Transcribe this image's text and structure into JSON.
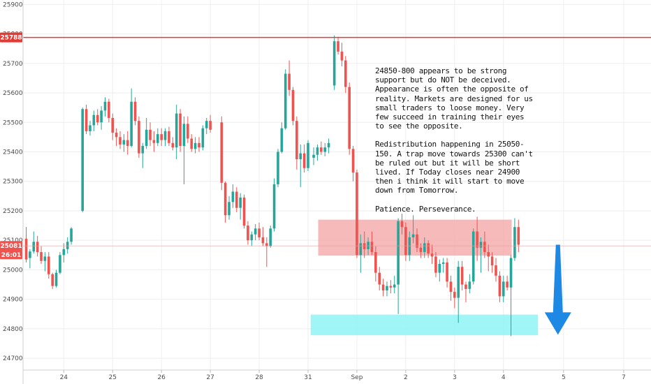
{
  "chart_data": {
    "type": "candlestick",
    "colors": {
      "up": "#26a69a",
      "down": "#ef5350",
      "resistance_line": "#e53935",
      "price_tag": "#e53935",
      "current_tag": "#ef5350",
      "zone_red": "#f4a3a3",
      "zone_cyan": "#8ff3f5",
      "arrow": "#1e88e5",
      "grid": "#eeeeee"
    },
    "y_axis": {
      "min": 24660,
      "max": 25915,
      "ticks": [
        "25900",
        "25800",
        "25700",
        "25600",
        "25500",
        "25400",
        "25300",
        "25200",
        "25100",
        "25000",
        "24900",
        "24800",
        "24700"
      ]
    },
    "x_axis": {
      "labels": [
        {
          "text": "24",
          "x": 10
        },
        {
          "text": "25",
          "x": 23
        },
        {
          "text": "26",
          "x": 36
        },
        {
          "text": "27",
          "x": 49
        },
        {
          "text": "28",
          "x": 62
        },
        {
          "text": "31",
          "x": 75
        },
        {
          "text": "Sep",
          "x": 88
        },
        {
          "text": "2",
          "x": 101
        },
        {
          "text": "3",
          "x": 114
        },
        {
          "text": "4",
          "x": 127
        },
        {
          "text": "5",
          "x": 143
        },
        {
          "text": "7",
          "x": 159
        }
      ]
    },
    "resistance": {
      "value": 25788,
      "label": "25788"
    },
    "current_price": {
      "value": 25081,
      "label": "25081",
      "countdown": "26:01"
    },
    "zones": [
      {
        "name": "redistribution",
        "color": "#f4a3a3",
        "y_top": 25170,
        "y_bottom": 25048,
        "x_start": 77.7,
        "x_end": 129.2
      },
      {
        "name": "support",
        "color": "#8ff3f5",
        "y_top": 24848,
        "y_bottom": 24778,
        "x_start": 75.7,
        "x_end": 136.2
      }
    ],
    "arrow": {
      "direction": "down",
      "x": 141.5,
      "y_from": 25085,
      "y_to": 24780
    },
    "candles": [
      [
        0.0,
        25105,
        25145,
        25025,
        25035
      ],
      [
        1.0,
        25040,
        25070,
        25005,
        25062
      ],
      [
        2.0,
        25062,
        25130,
        25055,
        25095
      ],
      [
        3.0,
        25095,
        25115,
        25045,
        25060
      ],
      [
        4.0,
        25060,
        25080,
        25020,
        25030
      ],
      [
        5.0,
        25030,
        25060,
        24995,
        25045
      ],
      [
        6.0,
        25045,
        25060,
        24970,
        24985
      ],
      [
        7.0,
        24985,
        24990,
        24935,
        24945
      ],
      [
        8.0,
        24945,
        25000,
        24940,
        24990
      ],
      [
        9.0,
        24990,
        25060,
        24985,
        25050
      ],
      [
        10.0,
        25050,
        25090,
        25025,
        25070
      ],
      [
        11.0,
        25070,
        25110,
        25055,
        25095
      ],
      [
        12.0,
        25095,
        25145,
        25085,
        25140
      ],
      [
        15.0,
        25200,
        25550,
        25195,
        25545
      ],
      [
        16.0,
        25545,
        25560,
        25460,
        25470
      ],
      [
        17.0,
        25470,
        25505,
        25455,
        25490
      ],
      [
        18.0,
        25490,
        25540,
        25470,
        25525
      ],
      [
        19.0,
        25525,
        25545,
        25490,
        25500
      ],
      [
        20.0,
        25500,
        25555,
        25475,
        25540
      ],
      [
        21.0,
        25540,
        25585,
        25520,
        25570
      ],
      [
        22.0,
        25570,
        25580,
        25500,
        25515
      ],
      [
        23.0,
        25515,
        25530,
        25440,
        25465
      ],
      [
        24.0,
        25465,
        25480,
        25420,
        25450
      ],
      [
        25.0,
        25450,
        25470,
        25410,
        25425
      ],
      [
        26.0,
        25425,
        25460,
        25400,
        25440
      ],
      [
        27.0,
        25440,
        25470,
        25390,
        25420
      ],
      [
        28.0,
        25420,
        25615,
        25415,
        25570
      ],
      [
        29.0,
        25570,
        25585,
        25490,
        25505
      ],
      [
        30.0,
        25505,
        25520,
        25380,
        25395
      ],
      [
        31.0,
        25395,
        25430,
        25345,
        25420
      ],
      [
        32.0,
        25420,
        25515,
        25410,
        25475
      ],
      [
        33.0,
        25475,
        25500,
        25420,
        25440
      ],
      [
        34.0,
        25440,
        25470,
        25400,
        25430
      ],
      [
        35.0,
        25430,
        25480,
        25420,
        25460
      ],
      [
        36.0,
        25460,
        25480,
        25420,
        25440
      ],
      [
        37.0,
        25440,
        25480,
        25420,
        25470
      ],
      [
        38.0,
        25470,
        25485,
        25420,
        25430
      ],
      [
        39.0,
        25430,
        25450,
        25405,
        25415
      ],
      [
        40.0,
        25415,
        25560,
        25375,
        25530
      ],
      [
        41.0,
        25530,
        25545,
        25400,
        25420
      ],
      [
        42.0,
        25420,
        25520,
        25290,
        25495
      ],
      [
        43.0,
        25495,
        25520,
        25430,
        25445
      ],
      [
        44.0,
        25445,
        25460,
        25400,
        25410
      ],
      [
        45.0,
        25410,
        25450,
        25395,
        25430
      ],
      [
        46.0,
        25430,
        25450,
        25400,
        25415
      ],
      [
        47.0,
        25415,
        25490,
        25405,
        25480
      ],
      [
        48.0,
        25480,
        25515,
        25460,
        25505
      ],
      [
        49.0,
        25505,
        25525,
        25465,
        25475
      ],
      [
        52.0,
        25500,
        25520,
        25270,
        25295
      ],
      [
        53.0,
        25295,
        25300,
        25160,
        25185
      ],
      [
        54.0,
        25185,
        25250,
        25170,
        25230
      ],
      [
        55.0,
        25230,
        25290,
        25210,
        25265
      ],
      [
        56.0,
        25265,
        25280,
        25195,
        25210
      ],
      [
        57.0,
        25210,
        25260,
        25170,
        25245
      ],
      [
        58.0,
        25245,
        25255,
        25140,
        25150
      ],
      [
        59.0,
        25150,
        25165,
        25085,
        25100
      ],
      [
        60.0,
        25100,
        25130,
        25080,
        25120
      ],
      [
        61.0,
        25120,
        25155,
        25100,
        25140
      ],
      [
        62.0,
        25140,
        25160,
        25100,
        25110
      ],
      [
        63.0,
        25110,
        25145,
        25080,
        25090
      ],
      [
        64.0,
        25090,
        25110,
        25010,
        25080
      ],
      [
        65.0,
        25080,
        25150,
        25075,
        25140
      ],
      [
        66.0,
        25140,
        25310,
        25130,
        25290
      ],
      [
        67.0,
        25290,
        25410,
        25280,
        25400
      ],
      [
        68.0,
        25400,
        25500,
        25395,
        25480
      ],
      [
        69.0,
        25480,
        25680,
        25475,
        25665
      ],
      [
        70.0,
        25665,
        25710,
        25590,
        25610
      ],
      [
        71.0,
        25610,
        25620,
        25490,
        25505
      ],
      [
        72.0,
        25505,
        25520,
        25340,
        25375
      ],
      [
        73.0,
        25375,
        25425,
        25280,
        25395
      ],
      [
        74.0,
        25395,
        25425,
        25330,
        25345
      ],
      [
        75.0,
        25345,
        25440,
        25335,
        25430
      ],
      [
        76.5,
        25380,
        25415,
        25355,
        25390
      ],
      [
        77.5,
        25390,
        25425,
        25370,
        25415
      ],
      [
        78.5,
        25415,
        25435,
        25390,
        25400
      ],
      [
        79.5,
        25400,
        25430,
        25385,
        25415
      ],
      [
        80.5,
        25415,
        25445,
        25395,
        25430
      ],
      [
        82.0,
        25625,
        25795,
        25610,
        25775
      ],
      [
        83.0,
        25775,
        25790,
        25730,
        25740
      ],
      [
        84.0,
        25740,
        25770,
        25690,
        25710
      ],
      [
        85.0,
        25710,
        25725,
        25600,
        25620
      ],
      [
        86.0,
        25620,
        25635,
        25390,
        25410
      ],
      [
        87.0,
        25410,
        25420,
        25300,
        25330
      ],
      [
        88.0,
        25330,
        25340,
        25040,
        25050
      ],
      [
        89.0,
        25050,
        25120,
        24990,
        25090
      ],
      [
        90.0,
        25090,
        25130,
        25040,
        25070
      ],
      [
        91.0,
        25070,
        25110,
        25050,
        25095
      ],
      [
        92.0,
        25095,
        25130,
        25050,
        25060
      ],
      [
        93.0,
        25060,
        25080,
        24960,
        24990
      ],
      [
        94.0,
        24990,
        25010,
        24930,
        24950
      ],
      [
        95.0,
        24950,
        24970,
        24910,
        24930
      ],
      [
        96.0,
        24930,
        24960,
        24910,
        24945
      ],
      [
        97.0,
        24945,
        24965,
        24920,
        24940
      ],
      [
        98.0,
        24940,
        24980,
        24920,
        24950
      ],
      [
        99.0,
        24950,
        25175,
        24850,
        25165
      ],
      [
        100.0,
        25165,
        25190,
        25120,
        25145
      ],
      [
        101.0,
        25145,
        25160,
        25030,
        25050
      ],
      [
        102.0,
        25050,
        25130,
        25030,
        25110
      ],
      [
        103.0,
        25110,
        25185,
        25090,
        25120
      ],
      [
        104.0,
        25120,
        25140,
        25060,
        25075
      ],
      [
        105.0,
        25075,
        25090,
        25040,
        25060
      ],
      [
        106.0,
        25060,
        25110,
        25040,
        25090
      ],
      [
        107.0,
        25090,
        25100,
        25040,
        25055
      ],
      [
        108.0,
        25055,
        25085,
        25020,
        25045
      ],
      [
        109.0,
        25045,
        25060,
        24975,
        24990
      ],
      [
        110.0,
        24990,
        25035,
        24960,
        25020
      ],
      [
        111.0,
        25020,
        25040,
        24990,
        25025
      ],
      [
        112.0,
        25025,
        25040,
        24940,
        24960
      ],
      [
        113.0,
        24960,
        24980,
        24895,
        24925
      ],
      [
        114.0,
        24925,
        24940,
        24870,
        24905
      ],
      [
        115.0,
        24905,
        25030,
        24820,
        25010
      ],
      [
        116.0,
        25010,
        25030,
        24930,
        24950
      ],
      [
        117.0,
        24950,
        24960,
        24890,
        24935
      ],
      [
        118.0,
        24935,
        24985,
        24920,
        24960
      ],
      [
        119.0,
        24960,
        25140,
        24950,
        25130
      ],
      [
        120.0,
        25130,
        25180,
        25030,
        25075
      ],
      [
        121.0,
        25075,
        25110,
        24990,
        25095
      ],
      [
        122.0,
        25095,
        25130,
        25040,
        25060
      ],
      [
        123.0,
        25060,
        25085,
        24995,
        25045
      ],
      [
        124.0,
        25045,
        25060,
        24990,
        25015
      ],
      [
        125.0,
        25015,
        25040,
        24960,
        24980
      ],
      [
        126.0,
        24980,
        24995,
        24890,
        24910
      ],
      [
        127.0,
        24910,
        24980,
        24890,
        24960
      ],
      [
        128.0,
        24960,
        24980,
        24930,
        24940
      ],
      [
        129.0,
        24940,
        25050,
        24775,
        25040
      ],
      [
        130.0,
        25040,
        25175,
        25030,
        25145
      ],
      [
        131.0,
        25145,
        25170,
        25060,
        25085
      ]
    ]
  },
  "annotation": {
    "paragraph1": "24850-800 appears to be strong support but do NOT be deceived. Appearance is often the opposite of reality. Markets are designed for us small traders to loose money. Very few succeed in training their eyes to see the opposite.",
    "paragraph2": "Redistribution happening in 25050-150. A trap move towards 25300 can't be ruled out but it will be short lived. If Today closes near 24900 then i think it will start to move down from Tomorrow.",
    "paragraph3": "Patience. Perseverance."
  }
}
